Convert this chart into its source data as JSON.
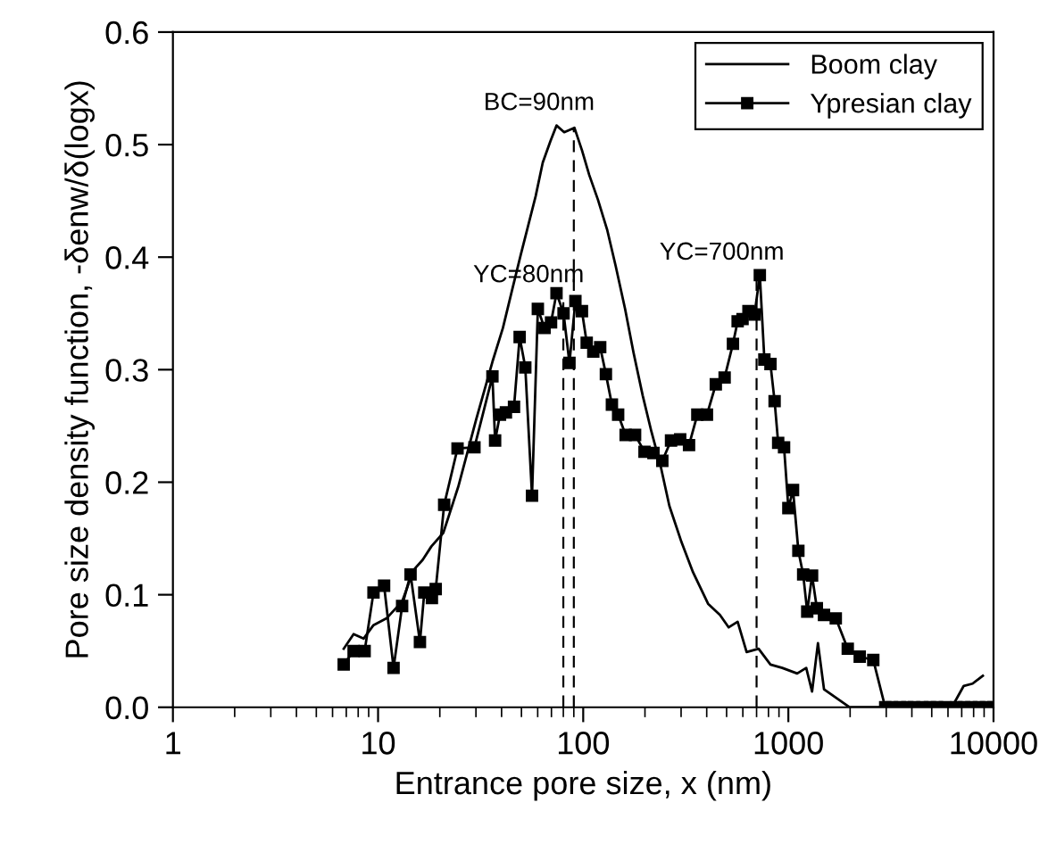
{
  "chart_data": {
    "type": "line",
    "xlabel": "Entrance pore size, x (nm)",
    "ylabel": "Pore size density function, -δenw/δ(logx)",
    "log": "x",
    "xlim": [
      1,
      10000
    ],
    "ylim": [
      0,
      0.6
    ],
    "xticks": [
      1,
      10,
      100,
      1000,
      10000
    ],
    "yticks": [
      {
        "value": 0,
        "label": "0.0"
      },
      {
        "value": 0.1,
        "label": "0.1"
      },
      {
        "value": 0.2,
        "label": "0.2"
      },
      {
        "value": 0.3,
        "label": "0.3"
      },
      {
        "value": 0.4,
        "label": "0.4"
      },
      {
        "value": 0.5,
        "label": "0.5"
      },
      {
        "value": 0.6,
        "label": "0.6"
      }
    ],
    "grid": false,
    "legend": "top right",
    "series": [
      {
        "name": "Boom clay",
        "color": "#000000",
        "marker": "none",
        "line_style": "solid",
        "x": [
          6.8,
          7.6,
          8.5,
          9.5,
          11.0,
          13.1,
          14.9,
          16.5,
          18.2,
          20.8,
          24.6,
          30.1,
          36.1,
          40.6,
          44.9,
          49.6,
          58.6,
          63.5,
          69.2,
          74.1,
          80.8,
          90.6,
          98.6,
          107,
          118,
          131,
          144,
          160,
          176,
          195,
          215,
          238,
          263,
          301,
          343,
          406,
          464,
          512,
          566,
          626,
          716,
          818,
          934,
          1104,
          1222,
          1305,
          1394,
          1492,
          1882,
          1987,
          6266,
          7160,
          7907,
          8870
        ],
        "values": [
          0.052,
          0.065,
          0.061,
          0.073,
          0.079,
          0.094,
          0.122,
          0.131,
          0.143,
          0.155,
          0.196,
          0.256,
          0.307,
          0.337,
          0.37,
          0.402,
          0.454,
          0.484,
          0.503,
          0.517,
          0.511,
          0.515,
          0.495,
          0.473,
          0.451,
          0.424,
          0.392,
          0.354,
          0.315,
          0.277,
          0.245,
          0.215,
          0.179,
          0.147,
          0.12,
          0.092,
          0.082,
          0.071,
          0.076,
          0.049,
          0.052,
          0.038,
          0.035,
          0.03,
          0.035,
          0.014,
          0.057,
          0.016,
          0.003,
          0,
          0,
          0.019,
          0.021,
          0.028
        ]
      },
      {
        "name": "Ypresian clay",
        "color": "#000000",
        "marker": "square",
        "line_style": "solid",
        "x": [
          6.8,
          7.6,
          8.6,
          9.5,
          10.7,
          11.9,
          13.1,
          14.4,
          16.0,
          16.8,
          18.3,
          19.1,
          21.0,
          24.4,
          29.5,
          36.1,
          37.2,
          39.3,
          42.0,
          46.0,
          49.0,
          52.2,
          56.3,
          60.1,
          64.8,
          69.7,
          74.1,
          80.2,
          85.7,
          91.6,
          98.6,
          104,
          112,
          121,
          129,
          138,
          148,
          161,
          179,
          199,
          220,
          243,
          268,
          297,
          328,
          360,
          401,
          443,
          489,
          537,
          566,
          598,
          639,
          684,
          726,
          764,
          818,
          857,
          892,
          953,
          1000,
          1054,
          1119,
          1181,
          1236,
          1305,
          1377,
          1492,
          1703,
          1948,
          2228,
          2594,
          2966,
          3200,
          3500,
          3800,
          4100,
          4500,
          4900,
          5300,
          5800,
          6600,
          7200,
          7800,
          8500,
          9200,
          10000
        ],
        "values": [
          0.038,
          0.05,
          0.05,
          0.102,
          0.108,
          0.035,
          0.09,
          0.118,
          0.058,
          0.102,
          0.097,
          0.105,
          0.18,
          0.23,
          0.231,
          0.294,
          0.237,
          0.26,
          0.262,
          0.267,
          0.329,
          0.302,
          0.188,
          0.354,
          0.337,
          0.342,
          0.368,
          0.35,
          0.306,
          0.361,
          0.352,
          0.324,
          0.316,
          0.32,
          0.296,
          0.269,
          0.26,
          0.242,
          0.242,
          0.227,
          0.226,
          0.219,
          0.237,
          0.238,
          0.233,
          0.26,
          0.26,
          0.287,
          0.293,
          0.323,
          0.343,
          0.345,
          0.352,
          0.349,
          0.384,
          0.309,
          0.305,
          0.272,
          0.235,
          0.231,
          0.177,
          0.193,
          0.139,
          0.118,
          0.085,
          0.117,
          0.088,
          0.082,
          0.079,
          0.052,
          0.045,
          0.042,
          0,
          0,
          0,
          0,
          0,
          0,
          0,
          0,
          0,
          0,
          0,
          0,
          0,
          0,
          0
        ]
      }
    ],
    "ref_lines": [
      {
        "axis": "x",
        "value": 90,
        "line_style": "dashed",
        "color": "#000000"
      },
      {
        "axis": "x",
        "value": 80,
        "line_style": "dashed",
        "color": "#000000"
      },
      {
        "axis": "x",
        "value": 700,
        "line_style": "dashed",
        "color": "#000000"
      }
    ],
    "annotations": [
      {
        "text": "BC=90nm",
        "x": 90,
        "y": 0.513
      },
      {
        "text": "YC=80nm",
        "x": 80,
        "y": 0.36
      },
      {
        "text": "YC=700nm",
        "x": 700,
        "y": 0.38
      }
    ]
  }
}
